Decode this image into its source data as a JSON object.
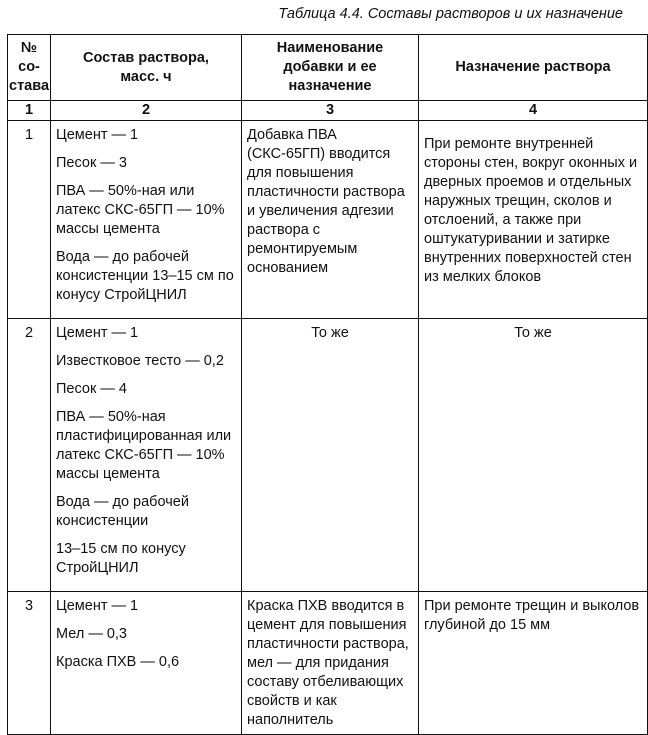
{
  "caption": "Таблица 4.4. Составы растворов и их назначение",
  "headers": [
    "№ со-­става",
    "Состав раствора, масс. ч",
    "Наименование добавки и ее назначение",
    "Назначение раствора"
  ],
  "header_lines": {
    "col1": [
      "№",
      "со-",
      "става"
    ],
    "col2": [
      "Состав раствора,",
      "масс. ч"
    ],
    "col3": [
      "Наименование",
      "добавки и ее",
      "назначение"
    ],
    "col4": [
      "Назначение раствора"
    ]
  },
  "column_numbers": [
    "1",
    "2",
    "3",
    "4"
  ],
  "rows": [
    {
      "num": "1",
      "composition": [
        "Цемент — 1",
        "Песок — 3",
        "ПВА — 50%-ная или латекс СКС-65ГП — 10% массы цемента",
        "Вода — до рабочей консистенции 13–15 см по конусу СтройЦНИЛ"
      ],
      "additive": "Добавка ПВА (СКС-65ГП) вводится для повышения пластичности раствора и увеличения адгезии раствора с ремонтируемым основанием",
      "purpose": "При ремонте внутренней стороны стен, вокруг оконных и дверных проемов и отдельных наружных трещин, сколов и отслоений, а также при оштукатуривании и затирке внутренних поверхностей стен из мелких блоков"
    },
    {
      "num": "2",
      "composition": [
        "Цемент — 1",
        "Известковое тесто — 0,2",
        "Песок — 4",
        "ПВА — 50%-ная пластифицированная или латекс СКС-65ГП — 10% массы цемента",
        "Вода — до рабочей консистенции",
        "13–15 см по конусу СтройЦНИЛ"
      ],
      "additive": "То же",
      "purpose": "То же"
    },
    {
      "num": "3",
      "composition": [
        "Цемент — 1",
        "Мел — 0,3",
        "Краска ПХВ — 0,6"
      ],
      "additive": "Краска ПХВ вводится в цемент для повышения пластичности раствора, мел — для придания составу отбеливающих свойств и как наполнитель",
      "purpose": "При ремонте трещин и выколов глубиной до 15 мм"
    }
  ]
}
